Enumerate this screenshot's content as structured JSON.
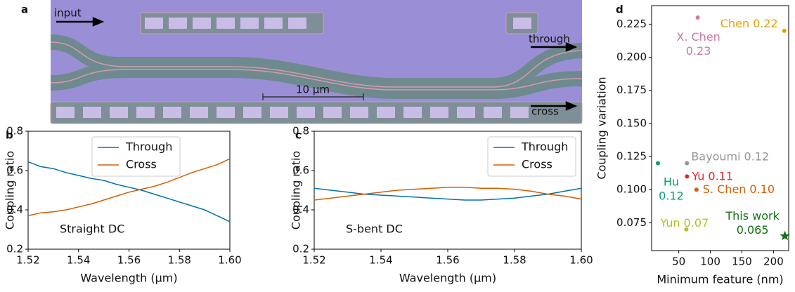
{
  "image_panel": {
    "label": "a",
    "input": "input",
    "through": "through",
    "cross": "cross",
    "scale_bar": "10 μm"
  },
  "chart_data": [
    {
      "type": "line",
      "panel": "b",
      "annotation": "Straight DC",
      "xlabel": "Wavelength (μm)",
      "ylabel": "Coupling ratio",
      "x": [
        1.52,
        1.525,
        1.53,
        1.535,
        1.54,
        1.545,
        1.55,
        1.555,
        1.56,
        1.565,
        1.57,
        1.575,
        1.58,
        1.585,
        1.59,
        1.595,
        1.6
      ],
      "series": [
        {
          "name": "Through",
          "color": "#0072b2",
          "values": [
            0.645,
            0.62,
            0.61,
            0.59,
            0.575,
            0.56,
            0.55,
            0.53,
            0.515,
            0.5,
            0.48,
            0.46,
            0.44,
            0.42,
            0.4,
            0.37,
            0.34
          ]
        },
        {
          "name": "Cross",
          "color": "#d55e00",
          "values": [
            0.37,
            0.385,
            0.39,
            0.4,
            0.415,
            0.43,
            0.45,
            0.47,
            0.49,
            0.505,
            0.52,
            0.54,
            0.565,
            0.59,
            0.61,
            0.63,
            0.66
          ]
        }
      ],
      "xlim": [
        1.52,
        1.6
      ],
      "xticks": [
        1.52,
        1.54,
        1.56,
        1.58,
        {
          "value": 1.6,
          "label": "1.60"
        }
      ],
      "ylim": [
        0.2,
        0.8
      ],
      "yticks": [
        0.2,
        0.4,
        0.6,
        0.8
      ],
      "legend": "upper center"
    },
    {
      "type": "line",
      "panel": "c",
      "annotation": "S-bent DC",
      "xlabel": "Wavelength (μm)",
      "ylabel": "Coupling ratio",
      "x": [
        1.52,
        1.525,
        1.53,
        1.535,
        1.54,
        1.545,
        1.55,
        1.555,
        1.56,
        1.565,
        1.57,
        1.575,
        1.58,
        1.585,
        1.59,
        1.595,
        1.6
      ],
      "series": [
        {
          "name": "Through",
          "color": "#0072b2",
          "values": [
            0.51,
            0.5,
            0.49,
            0.48,
            0.475,
            0.47,
            0.465,
            0.46,
            0.455,
            0.45,
            0.45,
            0.455,
            0.46,
            0.47,
            0.48,
            0.495,
            0.51
          ]
        },
        {
          "name": "Cross",
          "color": "#d55e00",
          "values": [
            0.45,
            0.46,
            0.47,
            0.48,
            0.49,
            0.5,
            0.505,
            0.51,
            0.515,
            0.515,
            0.51,
            0.51,
            0.505,
            0.495,
            0.48,
            0.47,
            0.455
          ]
        }
      ],
      "xlim": [
        1.52,
        1.6
      ],
      "xticks": [
        1.52,
        1.54,
        1.56,
        1.58,
        {
          "value": 1.6,
          "label": "1.60"
        }
      ],
      "ylim": [
        0.2,
        0.8
      ],
      "yticks": [
        0.2,
        0.4,
        0.6,
        0.8
      ],
      "legend": "upper right"
    },
    {
      "type": "scatter",
      "panel": "d",
      "xlabel": "Minimum feature (nm)",
      "ylabel": "Coupling variation",
      "series": [
        {
          "name": "X. Chen",
          "color": "#cc79a7",
          "marker": "circle",
          "x": [
            80
          ],
          "values": [
            0.23
          ],
          "value_labels": [
            "0.23"
          ]
        },
        {
          "name": "Chen",
          "color": "#e69f00",
          "marker": "circle",
          "x": [
            217
          ],
          "values": [
            0.22
          ],
          "value_labels": [
            "0.22"
          ]
        },
        {
          "name": "Bayoumi",
          "color": "#949494",
          "marker": "circle",
          "x": [
            63
          ],
          "values": [
            0.12
          ],
          "value_labels": [
            "0.12"
          ]
        },
        {
          "name": "Yu",
          "color": "#e3242b",
          "marker": "circle",
          "x": [
            63
          ],
          "values": [
            0.11
          ],
          "value_labels": [
            "0.11"
          ]
        },
        {
          "name": "Hu",
          "color": "#029e73",
          "marker": "circle",
          "x": [
            17
          ],
          "values": [
            0.12
          ],
          "value_labels": [
            "0.12"
          ]
        },
        {
          "name": "S. Chen",
          "color": "#d55e00",
          "marker": "circle",
          "x": [
            78
          ],
          "values": [
            0.1
          ],
          "value_labels": [
            "0.10"
          ]
        },
        {
          "name": "Yun",
          "color": "#bcbd22",
          "marker": "circle",
          "x": [
            62
          ],
          "values": [
            0.07
          ],
          "value_labels": [
            "0.07"
          ]
        },
        {
          "name": "This work",
          "color": "#137013",
          "marker": "star",
          "x": [
            218
          ],
          "values": [
            0.065
          ],
          "value_labels": [
            "0.065"
          ]
        }
      ],
      "xlim": [
        7,
        224
      ],
      "xticks": [
        50,
        100,
        150,
        200
      ],
      "ylim": [
        0.054,
        0.239
      ],
      "yticks": [
        0.075,
        {
          "value": 0.1,
          "label": "0.100"
        },
        0.125,
        {
          "value": 0.15,
          "label": "0.150"
        },
        0.175,
        {
          "value": 0.2,
          "label": "0.200"
        },
        0.225
      ]
    }
  ]
}
